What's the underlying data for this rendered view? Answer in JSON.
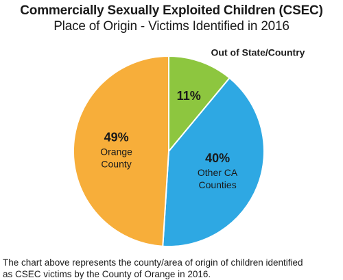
{
  "colors": {
    "orange_county": "#f7ae3a",
    "other_ca": "#2ea8e3",
    "out_of_state": "#8dc63f",
    "outline": "#ffffff"
  },
  "chart_data": {
    "type": "pie",
    "title": "Commercially Sexually Exploited Children (CSEC)",
    "subtitle": "Place of Origin - Victims Identified in 2016",
    "slices": [
      {
        "label": "Out of State/Country",
        "value": 11,
        "display": "11%",
        "color": "#8dc63f",
        "label_position": "outside"
      },
      {
        "label": "Other CA Counties",
        "value": 40,
        "display": "40%",
        "color": "#2ea8e3",
        "label_position": "inside"
      },
      {
        "label": "Orange County",
        "value": 49,
        "display": "49%",
        "color": "#f7ae3a",
        "label_position": "inside"
      }
    ],
    "start_angle": "12 o'clock",
    "direction": "clockwise",
    "legend": "none"
  },
  "caption": {
    "line1": "The chart above represents the county/area of origin of children identified",
    "line2": "as CSEC victims by the County of Orange in 2016."
  }
}
